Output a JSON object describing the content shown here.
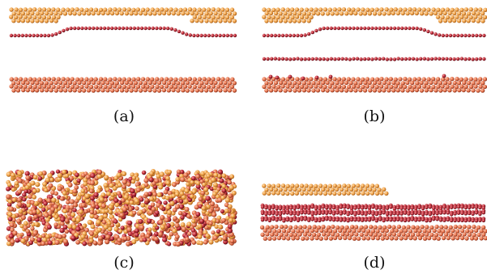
{
  "figure": {
    "panels": [
      {
        "id": "a",
        "label": "(a)",
        "kind": "interface"
      },
      {
        "id": "b",
        "label": "(b)",
        "kind": "interface-mid-layer"
      },
      {
        "id": "c",
        "label": "(c)",
        "kind": "disordered"
      },
      {
        "id": "d",
        "label": "(d)",
        "kind": "multi-layer"
      }
    ]
  },
  "colors": {
    "orange": "#f2a44a",
    "orange_dark": "#c9782a",
    "red": "#c8323c",
    "red_dark": "#7a1020",
    "coral": "#e87a55",
    "background": "#ffffff"
  }
}
